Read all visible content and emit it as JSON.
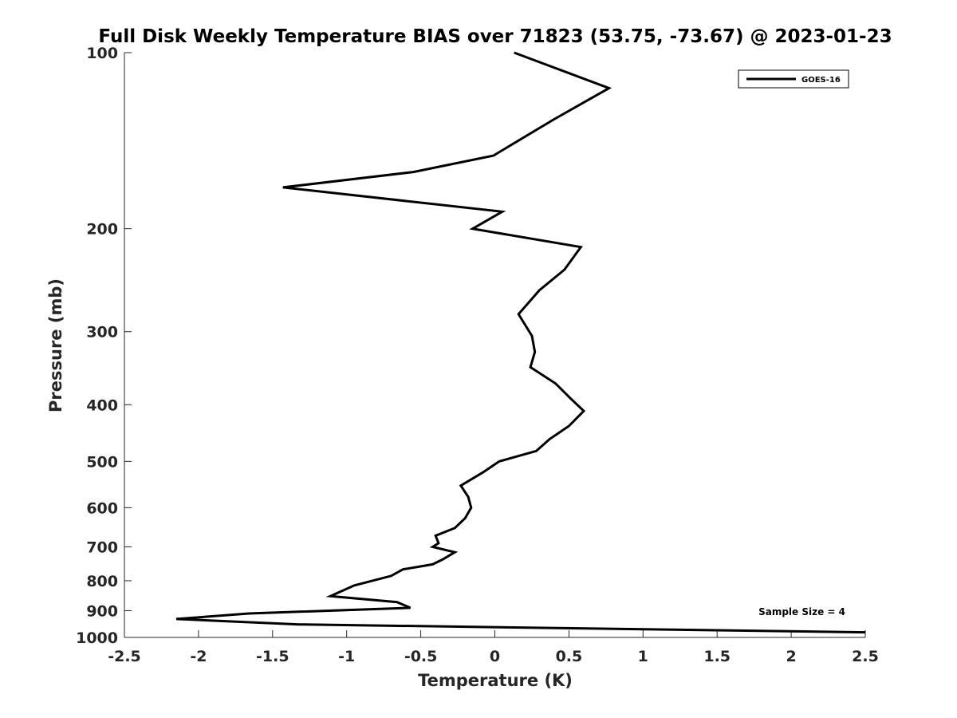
{
  "chart_data": {
    "type": "line",
    "title": "Full Disk Weekly Temperature BIAS over 71823 (53.75, -73.67) @ 2023-01-23",
    "xlabel": "Temperature (K)",
    "ylabel": "Pressure (mb)",
    "xlim": [
      -2.5,
      2.5
    ],
    "ylim": [
      100,
      1000
    ],
    "y_scale": "log",
    "y_reversed": true,
    "x_ticks": [
      -2.5,
      -2,
      -1.5,
      -1,
      -0.5,
      0,
      0.5,
      1,
      1.5,
      2,
      2.5
    ],
    "x_tick_labels": [
      "-2.5",
      "-2",
      "-1.5",
      "-1",
      "-0.5",
      "0",
      "0.5",
      "1",
      "1.5",
      "2",
      "2.5"
    ],
    "y_ticks": [
      100,
      200,
      300,
      400,
      500,
      600,
      700,
      800,
      900,
      1000
    ],
    "y_tick_labels": [
      "100",
      "200",
      "300",
      "400",
      "500",
      "600",
      "700",
      "800",
      "900",
      "1000"
    ],
    "grid": false,
    "legend_position": "top-right",
    "line_color": "#000000",
    "series": [
      {
        "name": "GOES-16",
        "x": [
          0.13,
          0.77,
          0.4,
          -0.01,
          -0.55,
          -1.43,
          0.05,
          -0.15,
          0.58,
          0.47,
          0.3,
          0.16,
          0.25,
          0.27,
          0.24,
          0.41,
          0.51,
          0.6,
          0.5,
          0.37,
          0.28,
          0.03,
          -0.08,
          -0.23,
          -0.18,
          -0.16,
          -0.2,
          -0.27,
          -0.4,
          -0.38,
          -0.42,
          -0.27,
          -0.35,
          -0.42,
          -0.62,
          -0.7,
          -0.95,
          -1.11,
          -0.66,
          -0.57,
          -1.66,
          -2.15,
          -1.32,
          2.5
        ],
        "y": [
          100,
          115,
          130,
          150,
          160,
          170,
          187,
          200,
          215,
          235,
          255,
          280,
          305,
          325,
          345,
          368,
          390,
          410,
          435,
          458,
          480,
          500,
          522,
          550,
          575,
          600,
          625,
          650,
          670,
          690,
          700,
          715,
          735,
          750,
          765,
          785,
          815,
          850,
          870,
          890,
          910,
          930,
          950,
          980
        ]
      }
    ],
    "annotations": [
      "Sample Size = 4"
    ]
  }
}
